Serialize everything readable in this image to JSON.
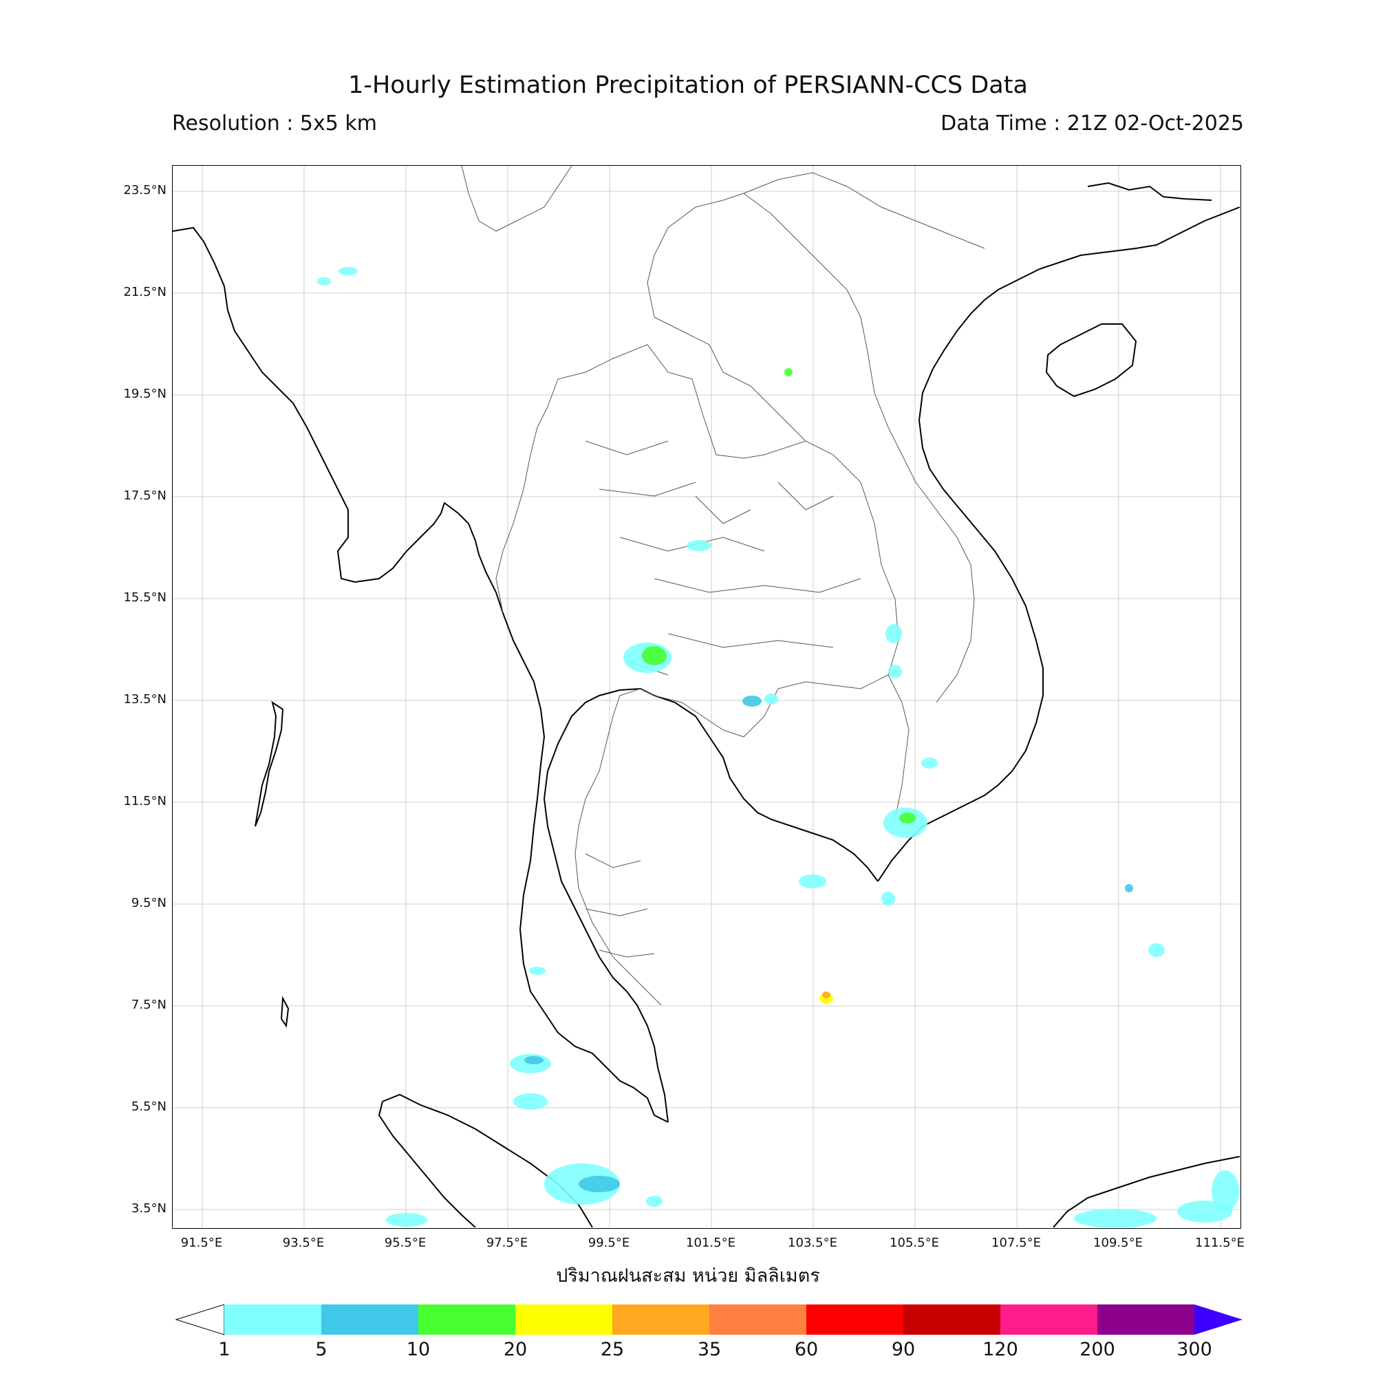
{
  "title": "1-Hourly Estimation Precipitation of PERSIANN-CCS Data",
  "resolution_text": "Resolution : 5x5 km",
  "data_time_text": "Data Time : 21Z 02-Oct-2025",
  "colorbar_caption": "ปริมาณฝนสะสม หน่วย มิลลิเมตร",
  "lat_labels": [
    "23.5°N",
    "21.5°N",
    "19.5°N",
    "17.5°N",
    "15.5°N",
    "13.5°N",
    "11.5°N",
    "9.5°N",
    "7.5°N",
    "5.5°N",
    "3.5°N"
  ],
  "lon_labels": [
    "91.5°E",
    "93.5°E",
    "95.5°E",
    "97.5°E",
    "99.5°E",
    "101.5°E",
    "103.5°E",
    "105.5°E",
    "107.5°E",
    "109.5°E",
    "111.5°E"
  ],
  "colorbar": {
    "ticks": [
      "1",
      "5",
      "10",
      "20",
      "25",
      "35",
      "60",
      "90",
      "120",
      "200",
      "300"
    ],
    "colors": [
      "#80ffff",
      "#40c8e8",
      "#48ff30",
      "#ffff00",
      "#ffa820",
      "#ff8040",
      "#ff0000",
      "#c80000",
      "#ff1c8c",
      "#8c008c"
    ],
    "under_color": "#ffffff",
    "over_color": "#3c00ff"
  },
  "map": {
    "lon_range": [
      90.9,
      112.0
    ],
    "lat_range": [
      3.0,
      24.0
    ],
    "coastline_color": "#000000",
    "province_color": "#555555",
    "gridline_color": "#cccccc"
  }
}
